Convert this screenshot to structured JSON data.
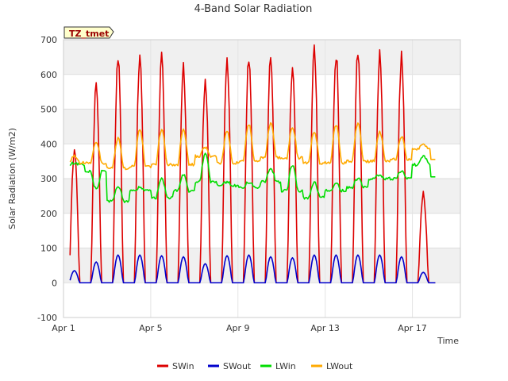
{
  "chart_data": {
    "type": "line",
    "title": "4-Band Solar Radiation",
    "tag": "TZ_tmet",
    "xlabel": "Time",
    "ylabel": "Solar Radiation (W/m2)",
    "xlim": [
      0,
      18.2
    ],
    "ylim": [
      -100,
      700
    ],
    "yticks": [
      -100,
      0,
      100,
      200,
      300,
      400,
      500,
      600,
      700
    ],
    "xticks": [
      {
        "day": 0,
        "label": "Apr 1"
      },
      {
        "day": 4,
        "label": "Apr 5"
      },
      {
        "day": 8,
        "label": "Apr 9"
      },
      {
        "day": 12,
        "label": "Apr 13"
      },
      {
        "day": 16,
        "label": "Apr 17"
      }
    ],
    "day_start": 0.3,
    "sample_step": 0.05,
    "legend_position": "bottom",
    "series": [
      {
        "name": "SWin",
        "color": "#dd0000",
        "daily_peak": [
          390,
          585,
          665,
          670,
          665,
          635,
          600,
          665,
          670,
          665,
          635,
          690,
          680,
          685,
          675,
          670,
          265
        ]
      },
      {
        "name": "SWout",
        "color": "#0000cc",
        "daily_peak": [
          35,
          60,
          80,
          80,
          78,
          75,
          55,
          78,
          80,
          75,
          72,
          80,
          80,
          80,
          80,
          75,
          30
        ]
      },
      {
        "name": "LWin",
        "color": "#00dd00",
        "daily_night": [
          340,
          320,
          235,
          265,
          245,
          265,
          290,
          280,
          275,
          290,
          265,
          245,
          265,
          275,
          300,
          300,
          340
        ],
        "daily_peak": [
          345,
          270,
          280,
          275,
          300,
          310,
          370,
          290,
          290,
          330,
          340,
          290,
          285,
          300,
          310,
          320,
          365
        ],
        "end_value": 305
      },
      {
        "name": "LWout",
        "color": "#ffaa00",
        "daily_night": [
          345,
          345,
          330,
          335,
          340,
          340,
          365,
          345,
          350,
          360,
          360,
          345,
          345,
          350,
          350,
          355,
          385
        ],
        "daily_peak": [
          365,
          405,
          415,
          440,
          440,
          440,
          390,
          435,
          455,
          460,
          445,
          435,
          455,
          460,
          435,
          420,
          400
        ],
        "end_value": 355
      }
    ]
  }
}
